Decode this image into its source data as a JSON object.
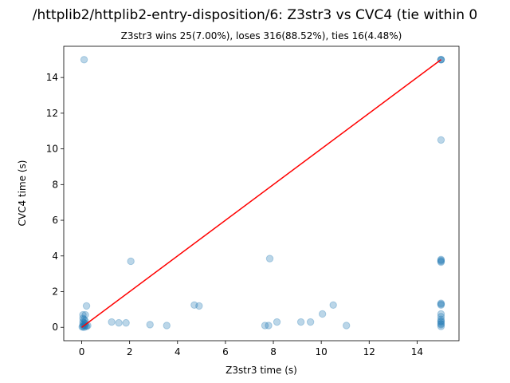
{
  "chart_data": {
    "type": "scatter",
    "title": "/httplib2/httplib2-entry-disposition/6: Z3str3 vs CVC4 (tie within 0",
    "subtitle": "Z3str3 wins 25(7.00%), loses 316(88.52%), ties 16(4.48%)",
    "xlabel": "Z3str3 time (s)",
    "ylabel": "CVC4 time (s)",
    "xlim": [
      -0.75,
      15.75
    ],
    "ylim": [
      -0.75,
      15.75
    ],
    "xticks": [
      0,
      2,
      4,
      6,
      8,
      10,
      12,
      14
    ],
    "yticks": [
      0,
      2,
      4,
      6,
      8,
      10,
      12,
      14
    ],
    "grid": false,
    "point_color": "#1f77b4",
    "line_color": "#ff0000",
    "diagonal": {
      "x": [
        0,
        15
      ],
      "y": [
        0,
        15
      ]
    },
    "points": [
      {
        "x": 0.1,
        "y": 15.0
      },
      {
        "x": 15.0,
        "y": 15.0
      },
      {
        "x": 15.0,
        "y": 15.0
      },
      {
        "x": 15.0,
        "y": 15.0
      },
      {
        "x": 15.0,
        "y": 10.5
      },
      {
        "x": 15.0,
        "y": 3.8
      },
      {
        "x": 15.0,
        "y": 3.75
      },
      {
        "x": 15.0,
        "y": 3.7
      },
      {
        "x": 15.0,
        "y": 3.65
      },
      {
        "x": 15.0,
        "y": 1.35
      },
      {
        "x": 15.0,
        "y": 1.3
      },
      {
        "x": 15.0,
        "y": 1.25
      },
      {
        "x": 15.0,
        "y": 0.75
      },
      {
        "x": 15.0,
        "y": 0.6
      },
      {
        "x": 15.0,
        "y": 0.45
      },
      {
        "x": 15.0,
        "y": 0.35
      },
      {
        "x": 15.0,
        "y": 0.3
      },
      {
        "x": 15.0,
        "y": 0.2
      },
      {
        "x": 15.0,
        "y": 0.15
      },
      {
        "x": 15.0,
        "y": 0.05
      },
      {
        "x": 2.05,
        "y": 3.7
      },
      {
        "x": 7.85,
        "y": 3.85
      },
      {
        "x": 0.2,
        "y": 1.2
      },
      {
        "x": 4.7,
        "y": 1.25
      },
      {
        "x": 4.9,
        "y": 1.2
      },
      {
        "x": 10.5,
        "y": 1.25
      },
      {
        "x": 10.05,
        "y": 0.75
      },
      {
        "x": 0.05,
        "y": 0.7
      },
      {
        "x": 0.15,
        "y": 0.7
      },
      {
        "x": 0.05,
        "y": 0.5
      },
      {
        "x": 0.1,
        "y": 0.45
      },
      {
        "x": 0.15,
        "y": 0.35
      },
      {
        "x": 0.05,
        "y": 0.3
      },
      {
        "x": 0.1,
        "y": 0.25
      },
      {
        "x": 0.15,
        "y": 0.2
      },
      {
        "x": 0.05,
        "y": 0.15
      },
      {
        "x": 0.1,
        "y": 0.1
      },
      {
        "x": 0.15,
        "y": 0.08
      },
      {
        "x": 0.05,
        "y": 0.05
      },
      {
        "x": 0.02,
        "y": 0.02
      },
      {
        "x": 0.1,
        "y": 0.0
      },
      {
        "x": 0.2,
        "y": 0.05
      },
      {
        "x": 0.25,
        "y": 0.1
      },
      {
        "x": 1.25,
        "y": 0.3
      },
      {
        "x": 1.55,
        "y": 0.25
      },
      {
        "x": 1.85,
        "y": 0.25
      },
      {
        "x": 2.85,
        "y": 0.15
      },
      {
        "x": 3.55,
        "y": 0.1
      },
      {
        "x": 7.65,
        "y": 0.1
      },
      {
        "x": 7.8,
        "y": 0.1
      },
      {
        "x": 8.15,
        "y": 0.3
      },
      {
        "x": 9.15,
        "y": 0.3
      },
      {
        "x": 9.55,
        "y": 0.3
      },
      {
        "x": 11.05,
        "y": 0.1
      }
    ]
  }
}
